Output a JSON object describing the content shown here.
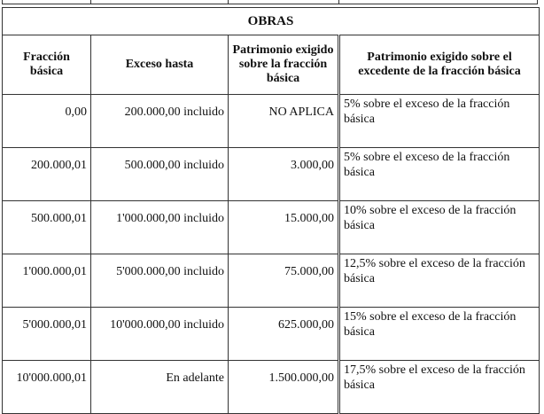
{
  "table": {
    "title": "OBRAS",
    "headers": [
      "Fracción básica",
      "Exceso hasta",
      "Patrimonio exigido sobre la fracción básica",
      "Patrimonio exigido sobre el excedente de la fracción básica"
    ],
    "rows": [
      [
        "0,00",
        "200.000,00 incluido",
        "NO APLICA",
        "5% sobre el exceso de la fracción básica"
      ],
      [
        "200.000,01",
        "500.000,00 incluido",
        "3.000,00",
        "5% sobre el exceso de la fracción básica"
      ],
      [
        "500.000,01",
        "1'000.000,00 incluido",
        "15.000,00",
        "10% sobre el exceso de la fracción básica"
      ],
      [
        "1'000.000,01",
        "5'000.000,00 incluido",
        "75.000,00",
        "12,5% sobre el exceso de la fracción básica"
      ],
      [
        "5'000.000,01",
        "10'000.000,00 incluido",
        "625.000,00",
        "15% sobre el exceso de la fracción básica"
      ],
      [
        "10'000.000,01",
        "En adelante",
        "1.500.000,00",
        "17,5% sobre el exceso de la fracción básica"
      ]
    ]
  }
}
